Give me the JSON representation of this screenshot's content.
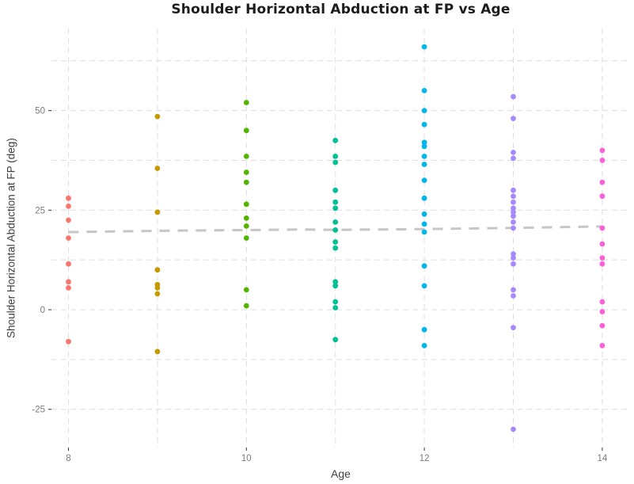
{
  "chart_data": {
    "type": "scatter",
    "title": "Shoulder Horizontal Abduction at FP vs Age",
    "xlabel": "Age",
    "ylabel": "Shoulder Horizontal Abduction at FP (deg)",
    "xlim": [
      7.809,
      14.312
    ],
    "ylim": [
      -34.6,
      70.6
    ],
    "x_ticks": [
      {
        "value": 8,
        "label": "8"
      },
      {
        "value": 10,
        "label": "10"
      },
      {
        "value": 12,
        "label": "12"
      },
      {
        "value": 14,
        "label": "14"
      }
    ],
    "x_minor_gridlines": [
      9,
      11,
      13
    ],
    "y_ticks": [
      {
        "value": 50,
        "label": "50"
      },
      {
        "value": 25,
        "label": "25"
      },
      {
        "value": 0,
        "label": "0"
      },
      {
        "value": -25,
        "label": "-25"
      }
    ],
    "y_minor_gridlines": [
      62.5,
      37.5,
      12.5,
      -12.5
    ],
    "grid": {
      "style": "dashed",
      "color": "#dedede",
      "on": true
    },
    "legend": "none",
    "background": "#ffffff",
    "point_radius": 3.4,
    "series": [
      {
        "name": "age-8",
        "x": 8,
        "color": "#F8766D",
        "values": [
          28,
          26,
          22.5,
          18,
          11.5,
          7,
          5.5,
          -8
        ]
      },
      {
        "name": "age-9",
        "x": 9,
        "color": "#C49A00",
        "values": [
          48.5,
          35.5,
          24.5,
          10,
          6.3,
          5.5,
          4,
          -10.5
        ]
      },
      {
        "name": "age-10",
        "x": 10,
        "color": "#53B400",
        "values": [
          52,
          45,
          38.5,
          34.5,
          32,
          26.5,
          23,
          21,
          18,
          5,
          1
        ]
      },
      {
        "name": "age-11",
        "x": 11,
        "color": "#00C094",
        "values": [
          42.5,
          38.5,
          37,
          30,
          27,
          25.5,
          22,
          20,
          17,
          15.5,
          7,
          6,
          2,
          0.5,
          -7.5
        ]
      },
      {
        "name": "age-12",
        "x": 12,
        "color": "#00B6EB",
        "values": [
          66,
          55,
          50,
          46.5,
          42,
          41,
          38.5,
          36.5,
          32.5,
          28,
          24,
          21.5,
          19.5,
          11,
          6,
          -5,
          -9
        ]
      },
      {
        "name": "age-13",
        "x": 13,
        "color": "#A58AFF",
        "values": [
          53.5,
          48,
          39.5,
          38,
          30,
          28.5,
          27,
          25.5,
          24.5,
          23.5,
          22,
          20.5,
          14,
          13,
          11.5,
          5,
          3.5,
          -4.5,
          -30
        ]
      },
      {
        "name": "age-14",
        "x": 14,
        "color": "#FB61D7",
        "values": [
          40,
          37.5,
          32,
          28.5,
          20.5,
          16.5,
          13,
          11.5,
          2,
          -0.5,
          -4,
          -9
        ]
      }
    ],
    "trend_line": {
      "style": "dashed",
      "color": "#c6c6c6",
      "width": 3,
      "points": [
        [
          8,
          19.5
        ],
        [
          9,
          19.8
        ],
        [
          10,
          20.0
        ],
        [
          10.6,
          20.15
        ],
        [
          11,
          20.05
        ],
        [
          12,
          20.25
        ],
        [
          13,
          20.55
        ],
        [
          14,
          20.9
        ]
      ]
    }
  }
}
